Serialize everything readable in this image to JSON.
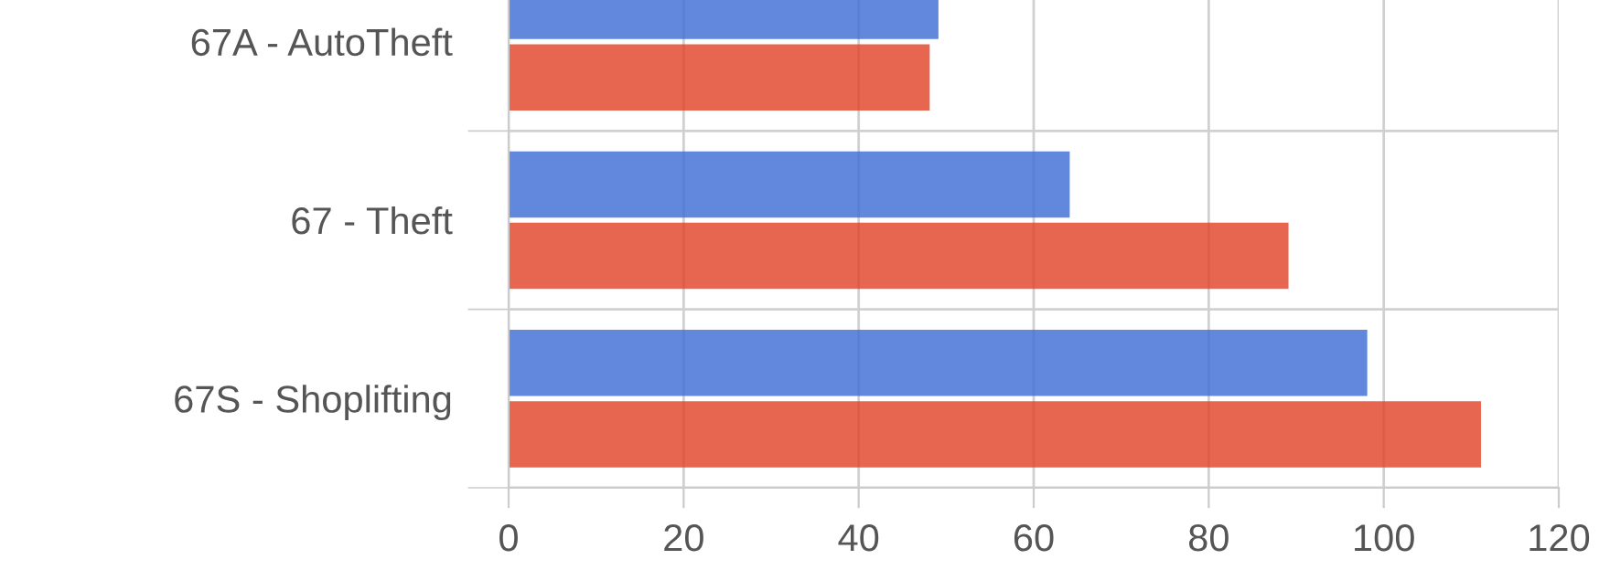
{
  "chart_data": {
    "type": "bar",
    "orientation": "horizontal",
    "categories": [
      "67A - AutoTheft",
      "67 - Theft",
      "67S - Shoplifting"
    ],
    "series": [
      {
        "color": "#3f6fd6",
        "values": [
          49,
          64,
          98
        ]
      },
      {
        "color": "#e2452a",
        "values": [
          48,
          89,
          111
        ]
      }
    ],
    "xlim": [
      0,
      120
    ],
    "xticks": [
      0,
      20,
      40,
      60,
      80,
      100,
      120
    ],
    "grid": true
  }
}
